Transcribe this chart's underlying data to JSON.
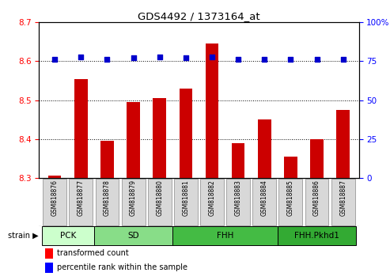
{
  "title": "GDS4492 / 1373164_at",
  "samples": [
    "GSM818876",
    "GSM818877",
    "GSM818878",
    "GSM818879",
    "GSM818880",
    "GSM818881",
    "GSM818882",
    "GSM818883",
    "GSM818884",
    "GSM818885",
    "GSM818886",
    "GSM818887"
  ],
  "red_values": [
    8.305,
    8.555,
    8.395,
    8.495,
    8.505,
    8.53,
    8.645,
    8.39,
    8.45,
    8.355,
    8.4,
    8.475
  ],
  "blue_values": [
    76,
    78,
    76,
    77,
    78,
    77,
    78,
    76,
    76,
    76,
    76,
    76
  ],
  "ylim_left": [
    8.3,
    8.7
  ],
  "ylim_right": [
    0,
    100
  ],
  "yticks_left": [
    8.3,
    8.4,
    8.5,
    8.6,
    8.7
  ],
  "yticks_right": [
    0,
    25,
    50,
    75,
    100
  ],
  "groups": [
    {
      "label": "PCK",
      "start": 0,
      "end": 2,
      "color": "#ccffcc"
    },
    {
      "label": "SD",
      "start": 2,
      "end": 5,
      "color": "#88dd88"
    },
    {
      "label": "FHH",
      "start": 5,
      "end": 9,
      "color": "#44bb44"
    },
    {
      "label": "FHH.Pkhd1",
      "start": 9,
      "end": 12,
      "color": "#33aa33"
    }
  ],
  "bar_color": "#cc0000",
  "dot_color": "#0000cc",
  "bar_width": 0.5,
  "dot_size": 25,
  "bg_color": "#ffffff",
  "tick_label_bg": "#d8d8d8"
}
